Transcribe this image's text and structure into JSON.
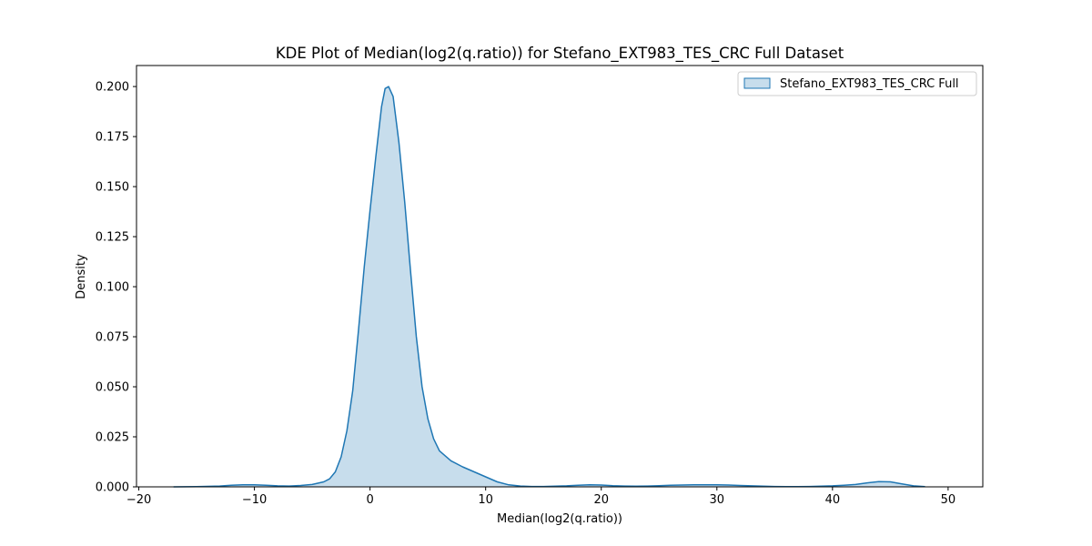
{
  "chart_data": {
    "type": "area",
    "title": "KDE Plot of Median(log2(q.ratio)) for Stefano_EXT983_TES_CRC Full Dataset",
    "xlabel": "Median(log2(q.ratio))",
    "ylabel": "Density",
    "xlim": [
      -20.2,
      53.0
    ],
    "ylim": [
      0,
      0.2105
    ],
    "xticks": [
      -20,
      -10,
      0,
      10,
      20,
      30,
      40,
      50
    ],
    "xtick_labels": [
      "−20",
      "−10",
      "0",
      "10",
      "20",
      "30",
      "40",
      "50"
    ],
    "yticks": [
      0.0,
      0.025,
      0.05,
      0.075,
      0.1,
      0.125,
      0.15,
      0.175,
      0.2
    ],
    "ytick_labels": [
      "0.000",
      "0.025",
      "0.050",
      "0.075",
      "0.100",
      "0.125",
      "0.150",
      "0.175",
      "0.200"
    ],
    "grid": false,
    "legend": {
      "placement": "top-right",
      "entries": [
        "Stefano_EXT983_TES_CRC Full"
      ]
    },
    "series": [
      {
        "name": "Stefano_EXT983_TES_CRC Full",
        "color": "#1f77b4",
        "fill_color": "#1f77b4",
        "fill_alpha": 0.25,
        "x": [
          -17,
          -15,
          -13,
          -12,
          -11,
          -10,
          -9,
          -8,
          -7,
          -6,
          -5,
          -4,
          -3.5,
          -3,
          -2.5,
          -2,
          -1.5,
          -1,
          -0.5,
          0,
          0.5,
          1,
          1.3,
          1.6,
          2,
          2.5,
          3,
          3.5,
          4,
          4.5,
          5,
          5.5,
          6,
          7,
          8,
          9,
          10,
          11,
          12,
          13,
          14,
          15,
          16,
          17,
          18,
          19,
          20,
          21,
          22,
          23,
          24,
          25,
          26,
          27,
          28,
          29,
          30,
          31,
          32,
          33,
          34,
          35,
          36,
          37,
          38,
          39,
          40,
          41,
          42,
          43,
          44,
          45,
          46,
          47,
          48
        ],
        "y": [
          0.0,
          0.0001,
          0.0004,
          0.0008,
          0.001,
          0.001,
          0.0008,
          0.0005,
          0.0004,
          0.0007,
          0.0012,
          0.0025,
          0.004,
          0.0075,
          0.015,
          0.028,
          0.048,
          0.078,
          0.11,
          0.138,
          0.165,
          0.19,
          0.199,
          0.2,
          0.195,
          0.172,
          0.142,
          0.108,
          0.075,
          0.05,
          0.034,
          0.024,
          0.018,
          0.013,
          0.01,
          0.0075,
          0.005,
          0.0025,
          0.001,
          0.0004,
          0.0002,
          0.0002,
          0.0003,
          0.0005,
          0.0008,
          0.001,
          0.0009,
          0.0006,
          0.0004,
          0.0003,
          0.0004,
          0.0006,
          0.0008,
          0.0009,
          0.001,
          0.001,
          0.001,
          0.0009,
          0.0007,
          0.0005,
          0.0003,
          0.0002,
          0.0001,
          0.0001,
          0.0002,
          0.0003,
          0.0005,
          0.0008,
          0.0012,
          0.002,
          0.0026,
          0.0025,
          0.0015,
          0.0005,
          0.0001
        ]
      }
    ]
  }
}
